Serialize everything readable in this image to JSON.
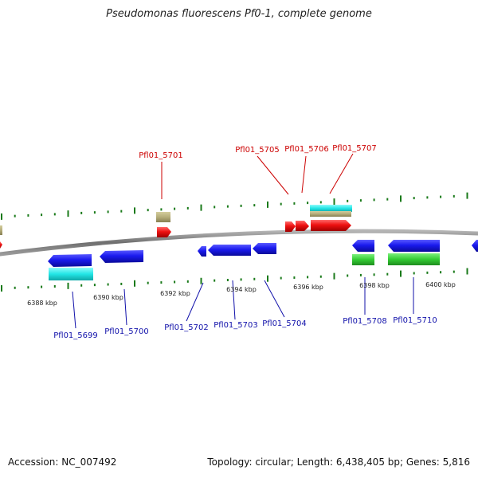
{
  "title": "Pseudomonas fluorescens Pf0-1, complete genome",
  "accession": "Accession: NC_007492",
  "stats": "Topology: circular; Length: 6,438,405 bp; Genes: 5,816",
  "scale_labels": [
    "6388 kbp",
    "6390 kbp",
    "6392 kbp",
    "6394 kbp",
    "6396 kbp",
    "6398 kbp",
    "6400 kbp"
  ],
  "forward_genes": [
    "Pfl01_5701",
    "Pfl01_5705",
    "Pfl01_5706",
    "Pfl01_5707"
  ],
  "reverse_genes": [
    "Pfl01_5699",
    "Pfl01_5700",
    "Pfl01_5702",
    "Pfl01_5703",
    "Pfl01_5704",
    "Pfl01_5708",
    "Pfl01_5710"
  ],
  "colors": {
    "forward_label": "#cc0000",
    "reverse_label": "#1010aa",
    "forward_gene": "#ee1111",
    "reverse_gene": "#1a1aee",
    "rna_gene": "#b5ad7a",
    "cyan_feature": "#22e5e5",
    "green_feature": "#33cc33",
    "tick": "#1a7a1a",
    "backbone": "#7f7f7f"
  }
}
